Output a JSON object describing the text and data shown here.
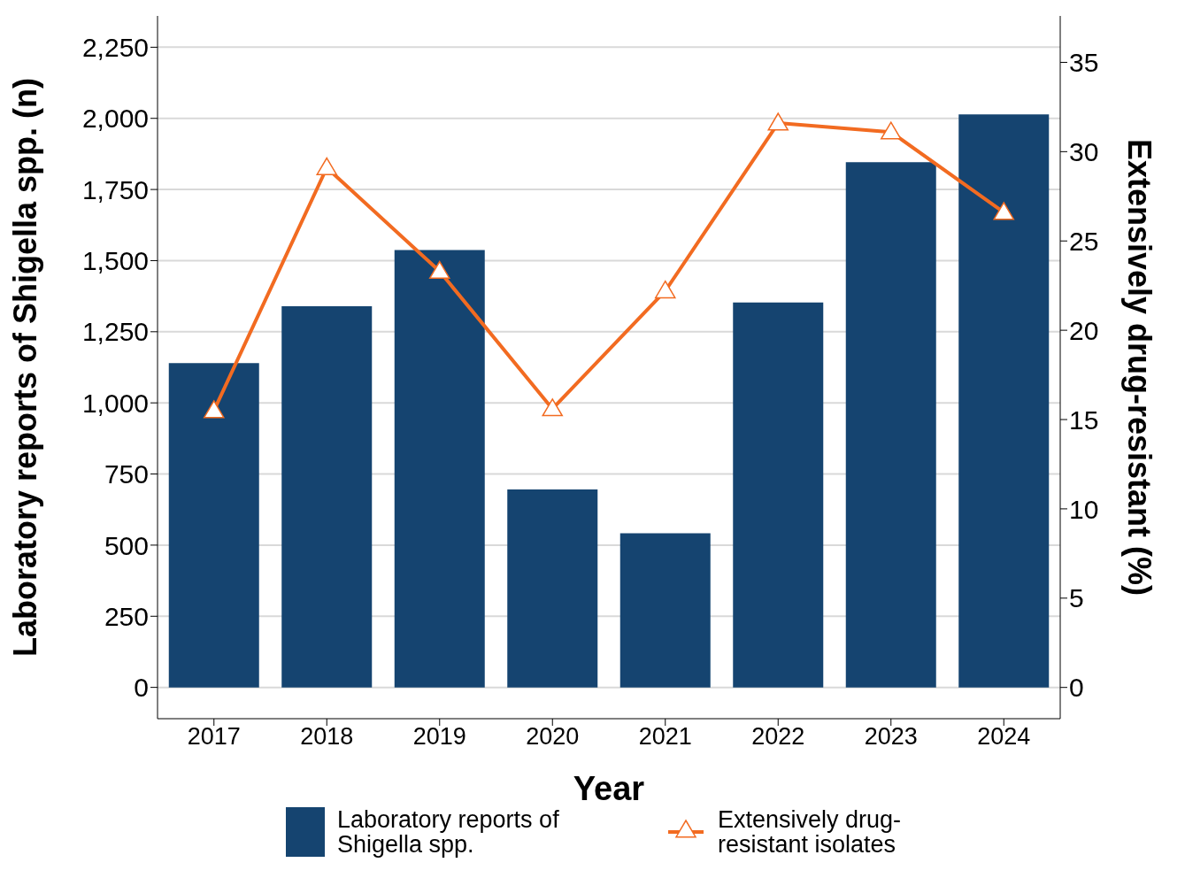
{
  "chart_data": {
    "type": "bar",
    "xlabel": "Year",
    "ylabel": "Laboratory reports of Shigella spp. (n)",
    "y2label": "Extensively drug-resistant (%)",
    "categories": [
      "2017",
      "2018",
      "2019",
      "2020",
      "2021",
      "2022",
      "2023",
      "2024"
    ],
    "series": [
      {
        "name": "Laboratory reports of Shigella spp.",
        "color": "#154470",
        "values": [
          1140,
          1340,
          1537,
          696,
          542,
          1353,
          1846,
          2014
        ]
      },
      {
        "name": "Extensively drug-resistant isolates",
        "type": "line",
        "axis": "y2",
        "color": "#f26b21",
        "marker": "triangle",
        "values": [
          15.5,
          29.1,
          23.3,
          15.6,
          22.2,
          31.6,
          31.1,
          26.6
        ]
      }
    ],
    "ylim": [
      -110,
      2360
    ],
    "yticks": [
      {
        "value": 0,
        "label": "0"
      },
      {
        "value": 250,
        "label": "250"
      },
      {
        "value": 500,
        "label": "500"
      },
      {
        "value": 750,
        "label": "750"
      },
      {
        "value": 1000,
        "label": "1,000"
      },
      {
        "value": 1250,
        "label": "1,250"
      },
      {
        "value": 1500,
        "label": "1,500"
      },
      {
        "value": 1750,
        "label": "1,750"
      },
      {
        "value": 2000,
        "label": "2,000"
      },
      {
        "value": 2250,
        "label": "2,250"
      }
    ],
    "y2lim": [
      -1.75,
      37.6
    ],
    "y2ticks": [
      0,
      5,
      10,
      15,
      20,
      25,
      30,
      35
    ],
    "grid": "y",
    "legend": "bottom"
  }
}
